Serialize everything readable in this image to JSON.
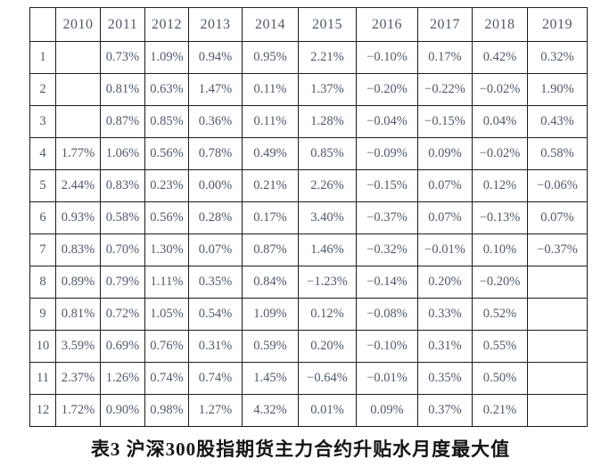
{
  "caption": "表3 沪深300股指期货主力合约升贴水月度最大值",
  "colors": {
    "background": "#ffffff",
    "cell_text": "#4c5a6b",
    "border": "#1c1c1c",
    "caption_text": "#141414"
  },
  "table": {
    "header": [
      "",
      "2010",
      "2011",
      "2012",
      "2013",
      "2014",
      "2015",
      "2016",
      "2017",
      "2018",
      "2019"
    ],
    "rows": [
      [
        "1",
        "",
        "0.73%",
        "1.09%",
        "0.94%",
        "0.95%",
        "2.21%",
        "−0.10%",
        "0.17%",
        "0.42%",
        "0.32%"
      ],
      [
        "2",
        "",
        "0.81%",
        "0.63%",
        "1.47%",
        "0.11%",
        "1.37%",
        "−0.20%",
        "−0.22%",
        "−0.02%",
        "1.90%"
      ],
      [
        "3",
        "",
        "0.87%",
        "0.85%",
        "0.36%",
        "0.11%",
        "1.28%",
        "−0.04%",
        "−0.15%",
        "0.04%",
        "0.43%"
      ],
      [
        "4",
        "1.77%",
        "1.06%",
        "0.56%",
        "0.78%",
        "0.49%",
        "0.85%",
        "−0.09%",
        "0.09%",
        "−0.02%",
        "0.58%"
      ],
      [
        "5",
        "2.44%",
        "0.83%",
        "0.23%",
        "0.00%",
        "0.21%",
        "2.26%",
        "−0.15%",
        "0.07%",
        "0.12%",
        "−0.06%"
      ],
      [
        "6",
        "0.93%",
        "0.58%",
        "0.56%",
        "0.28%",
        "0.17%",
        "3.40%",
        "−0.37%",
        "0.07%",
        "−0.13%",
        "0.07%"
      ],
      [
        "7",
        "0.83%",
        "0.70%",
        "1.30%",
        "0.07%",
        "0.87%",
        "1.46%",
        "−0.32%",
        "−0.01%",
        "0.10%",
        "−0.37%"
      ],
      [
        "8",
        "0.89%",
        "0.79%",
        "1.11%",
        "0.35%",
        "0.84%",
        "−1.23%",
        "−0.14%",
        "0.20%",
        "−0.20%",
        ""
      ],
      [
        "9",
        "0.81%",
        "0.72%",
        "1.05%",
        "0.54%",
        "1.09%",
        "0.12%",
        "−0.08%",
        "0.33%",
        "0.52%",
        ""
      ],
      [
        "10",
        "3.59%",
        "0.69%",
        "0.76%",
        "0.31%",
        "0.59%",
        "0.20%",
        "−0.10%",
        "0.31%",
        "0.55%",
        ""
      ],
      [
        "11",
        "2.37%",
        "1.26%",
        "0.74%",
        "0.74%",
        "1.45%",
        "−0.64%",
        "−0.01%",
        "0.35%",
        "0.50%",
        ""
      ],
      [
        "12",
        "1.72%",
        "0.90%",
        "0.98%",
        "1.27%",
        "4.32%",
        "0.01%",
        "0.09%",
        "0.37%",
        "0.21%",
        ""
      ]
    ]
  }
}
